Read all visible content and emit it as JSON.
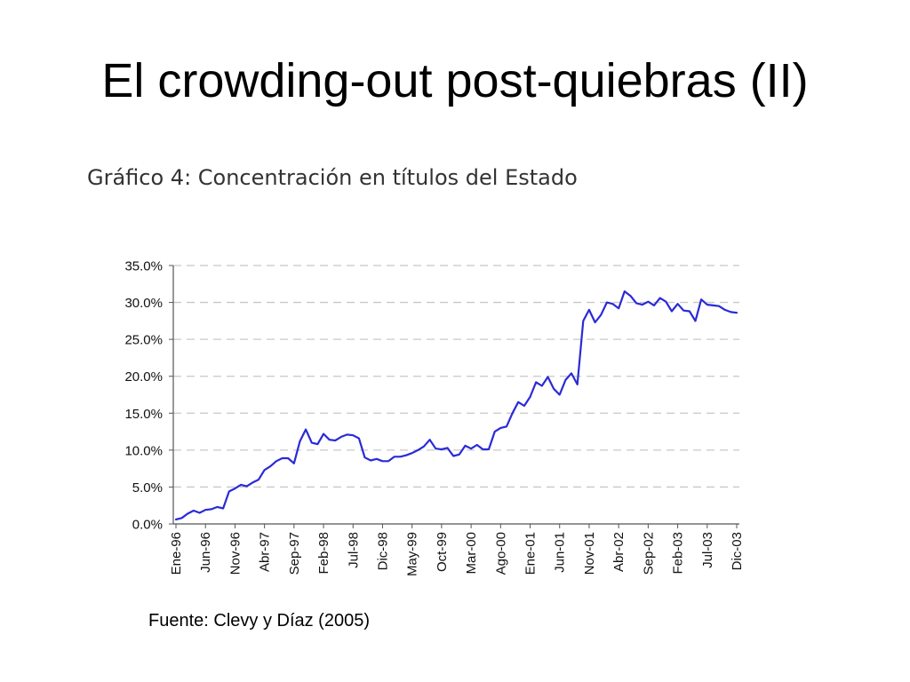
{
  "slide": {
    "title": "El crowding-out post-quiebras (II)",
    "source": "Fuente: Clevy y Díaz (2005)"
  },
  "chart_data": {
    "type": "line",
    "title": "Gráfico 4: Concentración en títulos del Estado",
    "xlabel": "",
    "ylabel": "",
    "ylim": [
      0,
      35
    ],
    "yticks": [
      "0.0%",
      "5.0%",
      "10.0%",
      "15.0%",
      "20.0%",
      "25.0%",
      "30.0%",
      "35.0%"
    ],
    "grid": "horizontal dashed",
    "x_tick_labels": [
      "Ene-96",
      "Jun-96",
      "Nov-96",
      "Abr-97",
      "Sep-97",
      "Feb-98",
      "Jul-98",
      "Dic-98",
      "May-99",
      "Oct-99",
      "Mar-00",
      "Ago-00",
      "Ene-01",
      "Jun-01",
      "Nov-01",
      "Abr-02",
      "Sep-02",
      "Feb-03",
      "Jul-03",
      "Dic-03"
    ],
    "line_color": "#2a2ad8",
    "series": [
      {
        "x": [
          "1996-01",
          "1996-02",
          "1996-03",
          "1996-04",
          "1996-05",
          "1996-06",
          "1996-07",
          "1996-08",
          "1996-09",
          "1996-10",
          "1996-11",
          "1996-12",
          "1997-01",
          "1997-02",
          "1997-03",
          "1997-04",
          "1997-05",
          "1997-06",
          "1997-07",
          "1997-08",
          "1997-09",
          "1997-10",
          "1997-11",
          "1997-12",
          "1998-01",
          "1998-02",
          "1998-03",
          "1998-04",
          "1998-05",
          "1998-06",
          "1998-07",
          "1998-08",
          "1998-09",
          "1998-10",
          "1998-11",
          "1998-12",
          "1999-01",
          "1999-02",
          "1999-03",
          "1999-04",
          "1999-05",
          "1999-06",
          "1999-07",
          "1999-08",
          "1999-09",
          "1999-10",
          "1999-11",
          "1999-12",
          "2000-01",
          "2000-02",
          "2000-03",
          "2000-04",
          "2000-05",
          "2000-06",
          "2000-07",
          "2000-08",
          "2000-09",
          "2000-10",
          "2000-11",
          "2000-12",
          "2001-01",
          "2001-02",
          "2001-03",
          "2001-04",
          "2001-05",
          "2001-06",
          "2001-07",
          "2001-08",
          "2001-09",
          "2001-10",
          "2001-11",
          "2001-12",
          "2002-01",
          "2002-02",
          "2002-03",
          "2002-04",
          "2002-05",
          "2002-06",
          "2002-07",
          "2002-08",
          "2002-09",
          "2002-10",
          "2002-11",
          "2002-12",
          "2003-01",
          "2003-02",
          "2003-03",
          "2003-04",
          "2003-05",
          "2003-06",
          "2003-07",
          "2003-08",
          "2003-09",
          "2003-10",
          "2003-11",
          "2003-12"
        ],
        "values": [
          0.6,
          0.8,
          1.4,
          1.8,
          1.5,
          1.9,
          2.0,
          2.3,
          2.1,
          4.4,
          4.8,
          5.3,
          5.1,
          5.6,
          6.0,
          7.3,
          7.8,
          8.5,
          8.9,
          8.9,
          8.2,
          11.2,
          12.8,
          11.0,
          10.8,
          12.2,
          11.4,
          11.3,
          11.8,
          12.1,
          12.0,
          11.6,
          9.0,
          8.6,
          8.8,
          8.5,
          8.5,
          9.1,
          9.1,
          9.3,
          9.6,
          10.0,
          10.5,
          11.4,
          10.2,
          10.1,
          10.3,
          9.2,
          9.4,
          10.6,
          10.2,
          10.7,
          10.1,
          10.1,
          12.5,
          13.0,
          13.2,
          15.0,
          16.5,
          16.0,
          17.2,
          19.2,
          18.7,
          19.9,
          18.3,
          17.5,
          19.5,
          20.4,
          18.9,
          27.5,
          29.0,
          27.3,
          28.3,
          30.0,
          29.8,
          29.2,
          31.5,
          30.9,
          29.9,
          29.7,
          30.1,
          29.6,
          30.6,
          30.1,
          28.8,
          29.8,
          28.9,
          28.8,
          27.5,
          30.4,
          29.7,
          29.6,
          29.5,
          29.0,
          28.7,
          28.6
        ]
      }
    ]
  }
}
